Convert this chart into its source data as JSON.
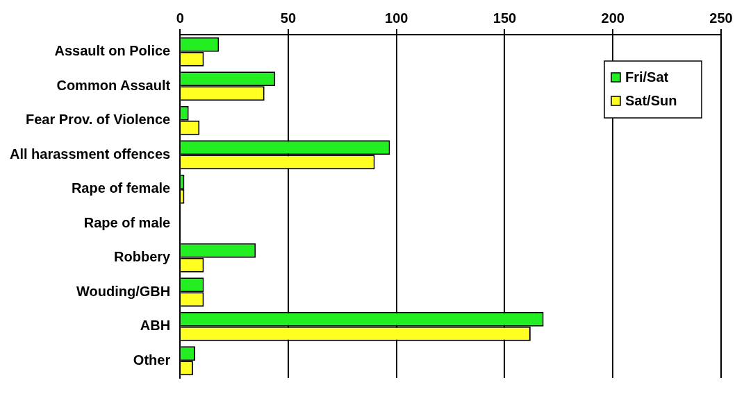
{
  "chart_data": {
    "type": "bar",
    "orientation": "horizontal",
    "categories": [
      "Assault on Police",
      "Common Assault",
      "Fear Prov. of Violence",
      "All harassment offences",
      "Rape of female",
      "Rape of male",
      "Robbery",
      "Wouding/GBH",
      "ABH",
      "Other"
    ],
    "series": [
      {
        "name": "Fri/Sat",
        "color": "#22ee22",
        "values": [
          18,
          44,
          4,
          97,
          2,
          0,
          35,
          11,
          168,
          7
        ]
      },
      {
        "name": "Sat/Sun",
        "color": "#ffff22",
        "values": [
          11,
          39,
          9,
          90,
          2,
          0,
          11,
          11,
          162,
          6
        ]
      }
    ],
    "xlim": [
      0,
      250
    ],
    "xticks": [
      0,
      50,
      100,
      150,
      200,
      250
    ],
    "grid": "x",
    "legend": "top right"
  }
}
